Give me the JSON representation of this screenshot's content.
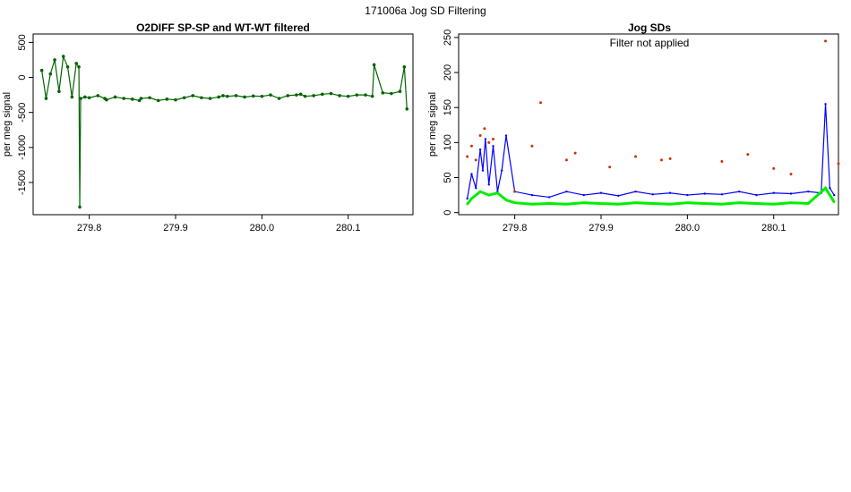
{
  "figure": {
    "title": "171006a   Jog SD Filtering"
  },
  "chart_data": [
    {
      "type": "scatter",
      "title": "O2DIFF SP-SP and WT-WT filtered",
      "xlabel": "",
      "ylabel": "per meg signal",
      "xlim": [
        279.735,
        280.175
      ],
      "ylim": [
        -1960,
        620
      ],
      "xticks": [
        "279.8",
        "279.9",
        "280.0",
        "280.1"
      ],
      "yticks": [
        "500",
        "0",
        "-500",
        "-1000",
        "-1500"
      ],
      "xtick_values": [
        279.8,
        279.9,
        280.0,
        280.1
      ],
      "ytick_values": [
        500,
        0,
        -500,
        -1000,
        -1500
      ],
      "grid": false,
      "series": [
        {
          "color": "#006400",
          "x": [
            279.745,
            279.75,
            279.755,
            279.76,
            279.765,
            279.77,
            279.775,
            279.78,
            279.785,
            279.788,
            279.789,
            279.79,
            279.795,
            279.8,
            279.81,
            279.818,
            279.82,
            279.83,
            279.84,
            279.85,
            279.858,
            279.86,
            279.87,
            279.88,
            279.89,
            279.9,
            279.91,
            279.92,
            279.93,
            279.94,
            279.95,
            279.955,
            279.96,
            279.97,
            279.98,
            279.99,
            280.0,
            280.01,
            280.02,
            280.03,
            280.04,
            280.045,
            280.05,
            280.06,
            280.07,
            280.08,
            280.09,
            280.1,
            280.11,
            280.12,
            280.128,
            280.13,
            280.14,
            280.15,
            280.16,
            280.165,
            280.168
          ],
          "y": [
            100,
            -300,
            50,
            250,
            -200,
            300,
            150,
            -280,
            200,
            150,
            -1850,
            -300,
            -280,
            -290,
            -260,
            -300,
            -320,
            -280,
            -300,
            -310,
            -330,
            -300,
            -290,
            -330,
            -310,
            -320,
            -290,
            -260,
            -290,
            -300,
            -280,
            -260,
            -270,
            -260,
            -280,
            -265,
            -270,
            -250,
            -300,
            -260,
            -250,
            -240,
            -270,
            -260,
            -240,
            -230,
            -260,
            -270,
            -250,
            -250,
            -270,
            180,
            -220,
            -230,
            -200,
            150,
            -450
          ]
        }
      ]
    },
    {
      "type": "line",
      "title": "Jog SDs",
      "annotation": "Filter not applied",
      "xlabel": "",
      "ylabel": "per meg signal",
      "xlim": [
        279.735,
        280.175
      ],
      "ylim": [
        -3,
        255
      ],
      "xticks": [
        "279.8",
        "279.9",
        "280.0",
        "280.1"
      ],
      "yticks": [
        "0",
        "50",
        "100",
        "150",
        "200",
        "250"
      ],
      "xtick_values": [
        279.8,
        279.9,
        280.0,
        280.1
      ],
      "ytick_values": [
        0,
        50,
        100,
        150,
        200,
        250
      ],
      "grid": false,
      "series": [
        {
          "color": "#0000ff",
          "x": [
            279.745,
            279.75,
            279.755,
            279.76,
            279.763,
            279.766,
            279.77,
            279.775,
            279.78,
            279.785,
            279.79,
            279.8,
            279.82,
            279.84,
            279.86,
            279.88,
            279.9,
            279.92,
            279.94,
            279.96,
            279.98,
            280.0,
            280.02,
            280.04,
            280.06,
            280.08,
            280.1,
            280.12,
            280.14,
            280.155,
            280.16,
            280.165,
            280.17
          ],
          "y": [
            20,
            55,
            35,
            90,
            60,
            105,
            40,
            95,
            30,
            60,
            110,
            30,
            25,
            22,
            30,
            25,
            28,
            24,
            30,
            26,
            28,
            25,
            27,
            26,
            30,
            25,
            28,
            27,
            30,
            28,
            155,
            35,
            25
          ]
        },
        {
          "color": "#00ee00",
          "x": [
            279.745,
            279.75,
            279.76,
            279.77,
            279.78,
            279.79,
            279.8,
            279.82,
            279.84,
            279.86,
            279.88,
            279.9,
            279.92,
            279.94,
            279.96,
            279.98,
            280.0,
            280.02,
            280.04,
            280.06,
            280.08,
            280.1,
            280.12,
            280.14,
            280.16,
            280.17
          ],
          "y": [
            12,
            20,
            30,
            25,
            28,
            18,
            14,
            12,
            13,
            12,
            14,
            13,
            12,
            14,
            13,
            12,
            14,
            13,
            12,
            14,
            13,
            12,
            14,
            13,
            35,
            15
          ]
        },
        {
          "color": "#cc3300",
          "x": [
            279.745,
            279.75,
            279.755,
            279.76,
            279.765,
            279.77,
            279.775,
            279.8,
            279.82,
            279.83,
            279.86,
            279.87,
            279.91,
            279.94,
            279.97,
            279.98,
            280.04,
            280.07,
            280.1,
            280.12,
            280.16,
            280.175
          ],
          "y": [
            80,
            95,
            75,
            110,
            120,
            100,
            105,
            30,
            95,
            157,
            75,
            85,
            65,
            80,
            75,
            77,
            73,
            83,
            63,
            55,
            245,
            70
          ]
        }
      ]
    }
  ]
}
